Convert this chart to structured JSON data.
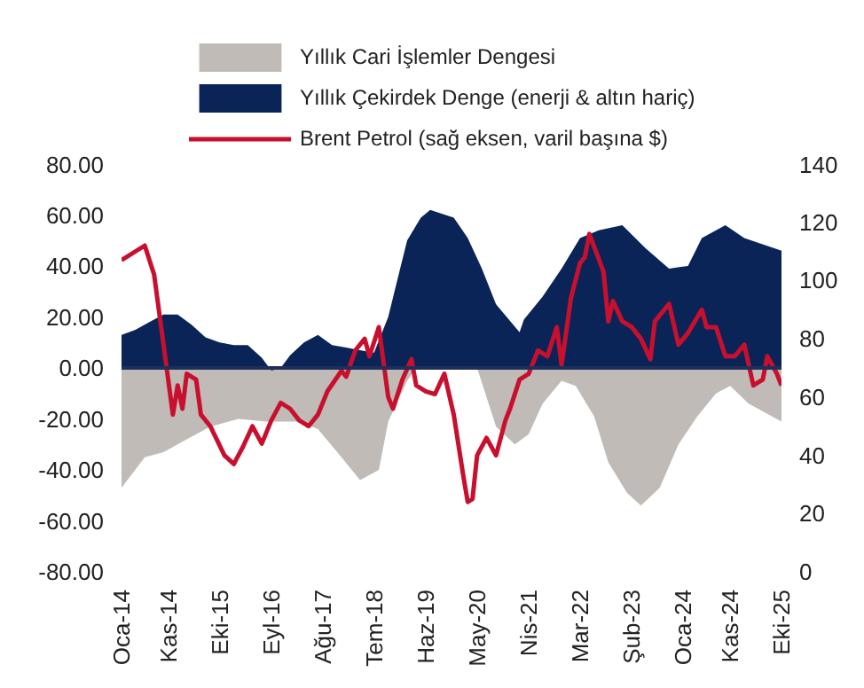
{
  "chart_data": {
    "type": "area",
    "xlim": [
      "2014-01",
      "2025-10"
    ],
    "xticks": [
      {
        "value": "2014-01",
        "label": "Oca-14"
      },
      {
        "value": "2014-11",
        "label": "Kas-14"
      },
      {
        "value": "2015-10",
        "label": "Eki-15"
      },
      {
        "value": "2016-09",
        "label": "Eyl-16"
      },
      {
        "value": "2017-08",
        "label": "Ağu-17"
      },
      {
        "value": "2018-07",
        "label": "Tem-18"
      },
      {
        "value": "2019-06",
        "label": "Haz-19"
      },
      {
        "value": "2020-05",
        "label": "May-20"
      },
      {
        "value": "2021-04",
        "label": "Nis-21"
      },
      {
        "value": "2022-03",
        "label": "Mar-22"
      },
      {
        "value": "2023-02",
        "label": "Şub-23"
      },
      {
        "value": "2024-01",
        "label": "Oca-24"
      },
      {
        "value": "2024-11",
        "label": "Kas-24"
      },
      {
        "value": "2025-10",
        "label": "Eki-25"
      }
    ],
    "ylim": [
      -80,
      80
    ],
    "yticks": [
      {
        "value": -80,
        "label": "-80.00"
      },
      {
        "value": -60,
        "label": "-60.00"
      },
      {
        "value": -40,
        "label": "-40.00"
      },
      {
        "value": -20,
        "label": "-20.00"
      },
      {
        "value": 0,
        "label": "0.00"
      },
      {
        "value": 20,
        "label": "20.00"
      },
      {
        "value": 40,
        "label": "40.00"
      },
      {
        "value": 60,
        "label": "60.00"
      },
      {
        "value": 80,
        "label": "80.00"
      }
    ],
    "y2lim": [
      0,
      140
    ],
    "y2ticks": [
      0,
      20,
      40,
      60,
      80,
      100,
      120,
      140
    ],
    "grid": false,
    "legend": "top",
    "ref_lines": [
      {
        "axis": "y",
        "value": 0,
        "color": "#1f2f5c"
      }
    ],
    "series": [
      {
        "name": "Yıllık Cari İşlemler Dengesi",
        "type": "area",
        "color": "#c0bbb6",
        "x": [
          "2014-01",
          "2014-06",
          "2014-10",
          "2015-03",
          "2015-08",
          "2016-02",
          "2016-08",
          "2017-03",
          "2017-07",
          "2017-12",
          "2018-04",
          "2018-08",
          "2018-10",
          "2019-02",
          "2019-04",
          "2020-05",
          "2020-09",
          "2021-01",
          "2021-04",
          "2021-07",
          "2021-11",
          "2022-02",
          "2022-06",
          "2022-09",
          "2023-01",
          "2023-04",
          "2023-08",
          "2023-12",
          "2024-04",
          "2024-08",
          "2024-11",
          "2025-03",
          "2025-10"
        ],
        "values": [
          -47,
          -35,
          -33,
          -28,
          -23,
          -20,
          -21,
          -21,
          -24,
          -35,
          -44,
          -40,
          -21,
          -5,
          0,
          0,
          -23,
          -30,
          -26,
          -14,
          -5,
          -7,
          -19,
          -37,
          -49,
          -54,
          -47,
          -30,
          -19,
          -10,
          -7,
          -14,
          -21
        ]
      },
      {
        "name": "Yıllık Çekirdek Denge (enerji & altın hariç)",
        "type": "area",
        "color": "#0a2458",
        "x": [
          "2014-01",
          "2014-04",
          "2014-07",
          "2014-10",
          "2015-01",
          "2015-04",
          "2015-07",
          "2015-10",
          "2016-01",
          "2016-04",
          "2016-07",
          "2016-09",
          "2016-11",
          "2017-01",
          "2017-04",
          "2017-07",
          "2017-10",
          "2018-01",
          "2018-04",
          "2018-07",
          "2018-10",
          "2018-12",
          "2019-02",
          "2019-05",
          "2019-07",
          "2019-12",
          "2020-03",
          "2020-06",
          "2020-09",
          "2021-02",
          "2021-03",
          "2021-07",
          "2021-11",
          "2022-03",
          "2022-07",
          "2022-12",
          "2023-05",
          "2023-10",
          "2024-02",
          "2024-05",
          "2024-10",
          "2025-02",
          "2025-10"
        ],
        "values": [
          13,
          15,
          18,
          21,
          21,
          17,
          12,
          10,
          9,
          9,
          4,
          -1,
          0,
          5,
          10,
          13,
          9,
          8,
          7,
          6,
          20,
          35,
          50,
          59,
          62,
          59,
          51,
          39,
          25,
          14,
          19,
          28,
          39,
          51,
          54,
          56,
          47,
          39,
          40,
          51,
          56,
          51,
          46
        ]
      },
      {
        "name": "Brent Petrol (sağ eksen, varil başına $)",
        "type": "line",
        "axis": "y2",
        "color": "#c8102e",
        "x": [
          "2014-01",
          "2014-06",
          "2014-08",
          "2014-10",
          "2014-12",
          "2015-01",
          "2015-02",
          "2015-03",
          "2015-05",
          "2015-06",
          "2015-08",
          "2015-11",
          "2016-01",
          "2016-03",
          "2016-05",
          "2016-07",
          "2016-09",
          "2016-11",
          "2017-01",
          "2017-03",
          "2017-05",
          "2017-07",
          "2017-09",
          "2017-12",
          "2018-01",
          "2018-03",
          "2018-05",
          "2018-06",
          "2018-08",
          "2018-10",
          "2018-11",
          "2019-01",
          "2019-03",
          "2019-04",
          "2019-06",
          "2019-08",
          "2019-10",
          "2019-12",
          "2020-02",
          "2020-03",
          "2020-04",
          "2020-05",
          "2020-07",
          "2020-09",
          "2020-11",
          "2020-12",
          "2021-02",
          "2021-04",
          "2021-06",
          "2021-08",
          "2021-10",
          "2021-11",
          "2022-01",
          "2022-03",
          "2022-04",
          "2022-05",
          "2022-08",
          "2022-09",
          "2022-10",
          "2022-12",
          "2023-02",
          "2023-04",
          "2023-06",
          "2023-07",
          "2023-10",
          "2023-12",
          "2024-02",
          "2024-05",
          "2024-06",
          "2024-08",
          "2024-10",
          "2024-12",
          "2025-02",
          "2025-04",
          "2025-06",
          "2025-07",
          "2025-09",
          "2025-10"
        ],
        "values": [
          107,
          112,
          102,
          78,
          54,
          64,
          56,
          68,
          66,
          54,
          50,
          40,
          37,
          43,
          50,
          44,
          52,
          58,
          56,
          52,
          50,
          54,
          62,
          69,
          67,
          76,
          80,
          74,
          84,
          60,
          56,
          66,
          73,
          64,
          62,
          61,
          68,
          54,
          33,
          24,
          25,
          40,
          46,
          40,
          52,
          56,
          66,
          68,
          76,
          74,
          84,
          71,
          94,
          106,
          108,
          116,
          103,
          86,
          93,
          86,
          84,
          80,
          73,
          86,
          92,
          78,
          82,
          90,
          84,
          84,
          74,
          74,
          78,
          64,
          66,
          74,
          68,
          64
        ]
      }
    ]
  }
}
